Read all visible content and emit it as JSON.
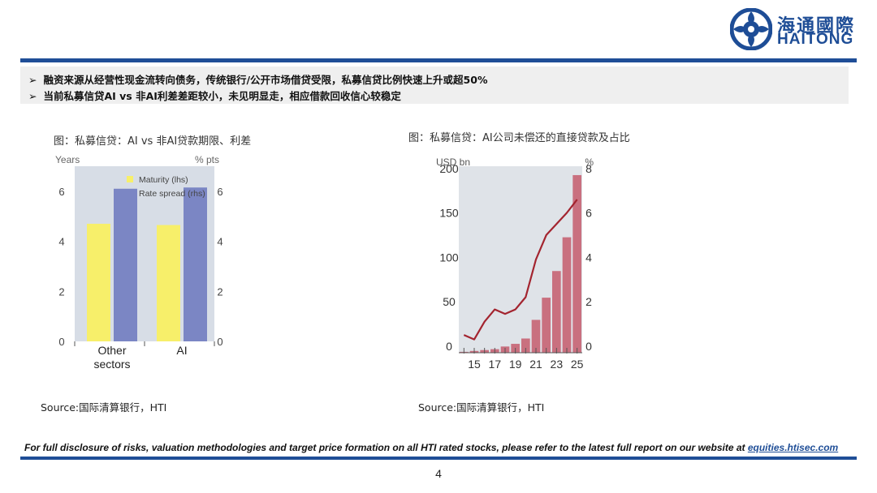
{
  "brand": {
    "name_cn": "海通國際",
    "name_en": "HAITONG",
    "color": "#1f4e97"
  },
  "bullets": [
    "融资来源从经营性现金流转向债务，传统银行/公开市场借贷受限，私募信贷比例快速上升或超50%",
    "当前私募信贷AI vs 非AI利差差距较小，未见明显走，相应借款回收信心较稳定"
  ],
  "chart_data": [
    {
      "type": "bar",
      "caption": "图：私募信贷：AI vs 非AI贷款期限、利差",
      "left_axis_unit": "Years",
      "right_axis_unit": "% pts",
      "categories": [
        "Other sectors",
        "AI"
      ],
      "category_lines": [
        [
          "Other",
          "sectors"
        ],
        [
          "AI"
        ]
      ],
      "series": [
        {
          "name": "Maturity (lhs)",
          "values": [
            4.7,
            4.65
          ],
          "color": "#f7ef6a",
          "axis": "left"
        },
        {
          "name": "Rate spread (rhs)",
          "values": [
            6.1,
            6.15
          ],
          "color": "#7b86c4",
          "axis": "right"
        }
      ],
      "left_ylim": [
        0,
        7
      ],
      "right_ylim": [
        0,
        7
      ],
      "left_ticks": [
        0,
        2,
        4,
        6
      ],
      "right_ticks": [
        0,
        2,
        4,
        6
      ],
      "legend": "top-left",
      "grid": false,
      "background": "#d7dde6",
      "source": "Source:国际清算银行，HTI"
    },
    {
      "type": "bar+line",
      "caption": "图：私募信贷：AI公司未偿还的直接贷款及占比",
      "left_axis_unit": "USD bn",
      "right_axis_unit": "%",
      "x": [
        14,
        15,
        16,
        17,
        18,
        19,
        20,
        21,
        22,
        23,
        24,
        25
      ],
      "x_tick_labels": [
        "15",
        "17",
        "19",
        "21",
        "23",
        "25"
      ],
      "x_tick_values": [
        15,
        17,
        19,
        21,
        23,
        25
      ],
      "series": [
        {
          "type": "bar",
          "axis": "left",
          "color": "#c9707f",
          "values": [
            1,
            2,
            3,
            4,
            7,
            10,
            16,
            37,
            62,
            92,
            130,
            200
          ]
        },
        {
          "type": "line",
          "axis": "right",
          "color": "#a3242f",
          "values": [
            0.8,
            0.6,
            1.4,
            1.95,
            1.75,
            1.95,
            2.5,
            4.2,
            5.3,
            5.8,
            6.3,
            6.9
          ]
        }
      ],
      "left_ylim": [
        0,
        210
      ],
      "right_ylim": [
        0,
        8.4
      ],
      "left_ticks": [
        0,
        50,
        100,
        150,
        200
      ],
      "right_ticks": [
        0,
        2,
        4,
        6,
        8
      ],
      "grid": false,
      "background": "#dfe3e8",
      "source": "Source:国际清算银行，HTI"
    }
  ],
  "footer": {
    "text": "For full disclosure of risks, valuation methodologies and target price formation on all HTI rated stocks, please refer to the latest full report on our website at ",
    "link": "equities.htisec.com"
  },
  "page_number": "4"
}
